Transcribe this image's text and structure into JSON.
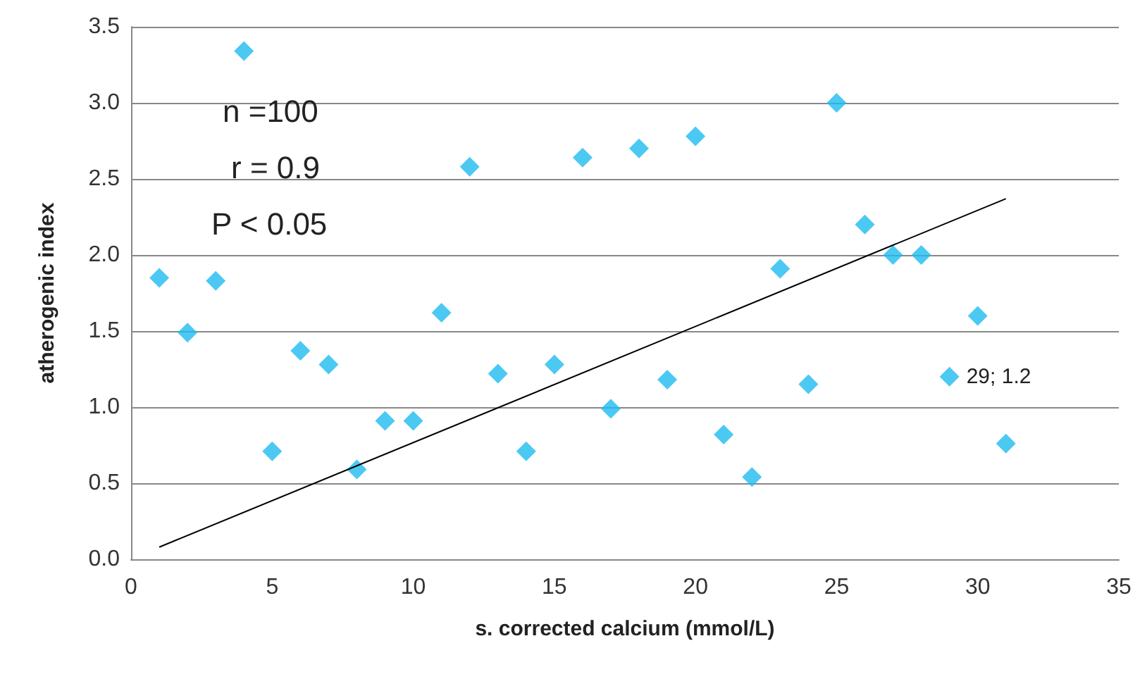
{
  "chart_data": {
    "type": "scatter",
    "xlabel": "s. corrected calcium (mmol/L)",
    "ylabel": "atherogenic index",
    "x": [
      1,
      2,
      3,
      4,
      5,
      6,
      7,
      8,
      9,
      10,
      11,
      12,
      13,
      14,
      15,
      16,
      17,
      18,
      19,
      20,
      21,
      22,
      23,
      24,
      25,
      26,
      27,
      28,
      29,
      30,
      31
    ],
    "series": [
      {
        "color": "#1ebcf0",
        "values": [
          1.85,
          1.49,
          1.83,
          3.34,
          0.71,
          1.37,
          1.28,
          0.59,
          0.91,
          0.91,
          1.62,
          2.58,
          1.22,
          0.71,
          1.28,
          2.64,
          0.99,
          2.7,
          1.18,
          2.78,
          0.82,
          0.54,
          1.91,
          1.15,
          3.0,
          2.2,
          2.0,
          2.0,
          1.2,
          1.6,
          0.76
        ]
      },
      {
        "type": "line",
        "color": "#000000",
        "x": [
          1,
          31
        ],
        "values": [
          0.08,
          2.37
        ],
        "marker": "none"
      }
    ],
    "xlim": [
      0,
      35
    ],
    "xticks": [
      0,
      5,
      10,
      15,
      20,
      25,
      30,
      35
    ],
    "ylim": [
      0,
      3.5
    ],
    "yticks": [
      {
        "value": 0,
        "label": "0.0"
      },
      {
        "value": 0.5,
        "label": "0.5"
      },
      {
        "value": 1,
        "label": "1.0"
      },
      {
        "value": 1.5,
        "label": "1.5"
      },
      {
        "value": 2,
        "label": "2.0"
      },
      {
        "value": 2.5,
        "label": "2.5"
      },
      {
        "value": 3,
        "label": "3.0"
      },
      {
        "value": 3.5,
        "label": "3.5"
      }
    ],
    "grid": "y",
    "marker": "diamond",
    "annotations": [
      "n =100",
      "r = 0.9",
      "P < 0.05",
      {
        "text": "29; 1.2",
        "x": 29,
        "y": 1.2
      }
    ]
  }
}
